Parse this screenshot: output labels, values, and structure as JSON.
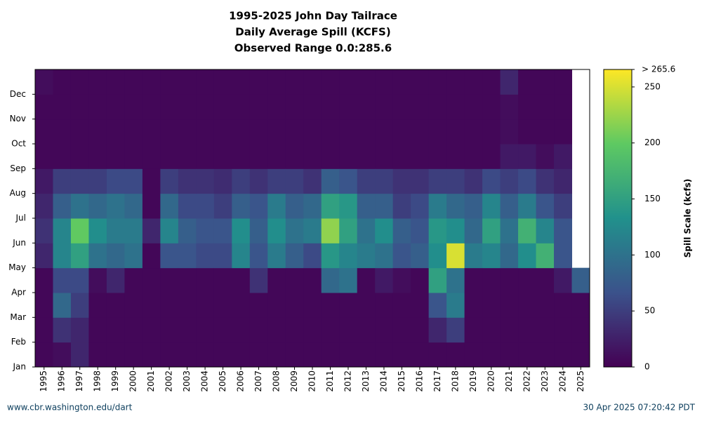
{
  "chart_data": {
    "type": "heatmap",
    "title": [
      "1995-2025 John Day Tailrace",
      "Daily Average Spill (KCFS)",
      "Observed Range 0.0:285.6"
    ],
    "x": [
      "1995",
      "1996",
      "1997",
      "1998",
      "1999",
      "2000",
      "2001",
      "2002",
      "2003",
      "2004",
      "2005",
      "2006",
      "2007",
      "2008",
      "2009",
      "2010",
      "2011",
      "2012",
      "2013",
      "2014",
      "2015",
      "2016",
      "2017",
      "2018",
      "2019",
      "2020",
      "2021",
      "2022",
      "2023",
      "2024",
      "2025"
    ],
    "y_categories": [
      "Jan",
      "Feb",
      "Mar",
      "Apr",
      "May",
      "Jun",
      "Jul",
      "Aug",
      "Sep",
      "Oct",
      "Nov",
      "Dec"
    ],
    "values": [
      [
        5,
        5,
        5,
        5,
        30,
        40,
        30,
        20,
        5,
        5,
        5,
        10
      ],
      [
        10,
        40,
        90,
        60,
        120,
        120,
        80,
        50,
        5,
        5,
        5,
        5
      ],
      [
        30,
        30,
        50,
        60,
        150,
        200,
        100,
        50,
        5,
        5,
        5,
        5
      ],
      [
        5,
        5,
        5,
        10,
        100,
        130,
        90,
        50,
        5,
        5,
        5,
        5
      ],
      [
        5,
        5,
        5,
        30,
        90,
        110,
        100,
        60,
        5,
        5,
        5,
        5
      ],
      [
        5,
        5,
        5,
        5,
        100,
        110,
        90,
        60,
        5,
        5,
        5,
        5
      ],
      [
        5,
        5,
        5,
        5,
        5,
        30,
        5,
        5,
        5,
        5,
        5,
        5
      ],
      [
        5,
        5,
        5,
        5,
        70,
        120,
        90,
        50,
        5,
        5,
        5,
        5
      ],
      [
        5,
        5,
        5,
        5,
        70,
        80,
        60,
        40,
        5,
        5,
        5,
        5
      ],
      [
        5,
        5,
        5,
        5,
        60,
        70,
        60,
        40,
        5,
        5,
        5,
        5
      ],
      [
        5,
        5,
        5,
        5,
        60,
        70,
        50,
        35,
        5,
        5,
        5,
        5
      ],
      [
        5,
        5,
        5,
        5,
        120,
        130,
        80,
        50,
        5,
        5,
        5,
        5
      ],
      [
        5,
        5,
        5,
        40,
        70,
        80,
        70,
        40,
        5,
        5,
        5,
        5
      ],
      [
        5,
        5,
        5,
        5,
        110,
        130,
        110,
        50,
        5,
        5,
        5,
        5
      ],
      [
        5,
        5,
        5,
        5,
        80,
        100,
        80,
        50,
        5,
        5,
        5,
        5
      ],
      [
        5,
        5,
        5,
        5,
        60,
        110,
        90,
        40,
        5,
        5,
        5,
        5
      ],
      [
        5,
        5,
        5,
        90,
        140,
        220,
        150,
        80,
        5,
        5,
        5,
        5
      ],
      [
        5,
        5,
        5,
        100,
        120,
        150,
        140,
        70,
        5,
        5,
        5,
        5
      ],
      [
        5,
        5,
        5,
        5,
        110,
        100,
        80,
        50,
        5,
        5,
        5,
        5
      ],
      [
        5,
        5,
        5,
        20,
        100,
        130,
        80,
        50,
        5,
        5,
        5,
        5
      ],
      [
        5,
        5,
        5,
        10,
        70,
        80,
        50,
        40,
        5,
        5,
        5,
        5
      ],
      [
        5,
        5,
        5,
        5,
        80,
        70,
        60,
        40,
        5,
        5,
        5,
        5
      ],
      [
        5,
        30,
        70,
        150,
        130,
        140,
        110,
        50,
        5,
        5,
        5,
        5
      ],
      [
        5,
        50,
        110,
        100,
        250,
        130,
        90,
        50,
        5,
        5,
        5,
        5
      ],
      [
        5,
        5,
        5,
        5,
        110,
        90,
        80,
        40,
        5,
        5,
        5,
        5
      ],
      [
        5,
        5,
        5,
        5,
        120,
        150,
        120,
        60,
        5,
        5,
        5,
        5
      ],
      [
        5,
        5,
        5,
        5,
        90,
        100,
        80,
        50,
        20,
        10,
        10,
        30
      ],
      [
        5,
        5,
        5,
        5,
        130,
        170,
        110,
        60,
        20,
        5,
        5,
        5
      ],
      [
        5,
        5,
        5,
        5,
        170,
        120,
        70,
        40,
        10,
        5,
        5,
        5
      ],
      [
        5,
        5,
        5,
        20,
        70,
        70,
        50,
        30,
        20,
        5,
        5,
        5
      ],
      [
        5,
        5,
        5,
        80,
        null,
        null,
        null,
        null,
        null,
        null,
        null,
        null
      ]
    ],
    "colormap": "viridis",
    "clim": [
      0,
      265.6
    ],
    "cticks": [
      0,
      50,
      100,
      150,
      200,
      250,
      {
        "value": 265.6,
        "label": "> 265.6"
      }
    ],
    "colorbar_label": "Spill Scale (kcfs)",
    "footer_left": "www.cbr.washington.edu/dart",
    "footer_right": "30 Apr 2025 07:20:42 PDT"
  }
}
